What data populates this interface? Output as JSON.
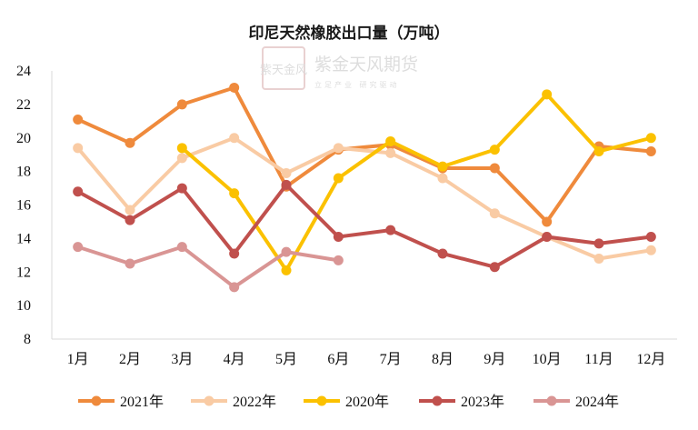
{
  "chart_data": {
    "type": "line",
    "title": "印尼天然橡胶出口量（万吨）",
    "categories": [
      "1月",
      "2月",
      "3月",
      "4月",
      "5月",
      "6月",
      "7月",
      "8月",
      "9月",
      "10月",
      "11月",
      "12月"
    ],
    "ylim": [
      8,
      24
    ],
    "yticks": [
      8,
      10,
      12,
      14,
      16,
      18,
      20,
      22,
      24
    ],
    "grid": false,
    "legend_position": "bottom",
    "series": [
      {
        "name": "2021年",
        "color": "#ef8a3c",
        "values": [
          21.1,
          19.7,
          22.0,
          23.0,
          17.1,
          19.3,
          19.6,
          18.2,
          18.2,
          15.0,
          19.5,
          19.2
        ]
      },
      {
        "name": "2022年",
        "color": "#f9cba4",
        "values": [
          19.4,
          15.7,
          18.8,
          20.0,
          17.9,
          19.4,
          19.1,
          17.6,
          15.5,
          14.1,
          12.8,
          13.3
        ]
      },
      {
        "name": "2020年",
        "color": "#fbc100",
        "values": [
          null,
          null,
          19.4,
          16.7,
          12.1,
          17.6,
          19.8,
          18.3,
          19.3,
          22.6,
          19.2,
          20.0
        ]
      },
      {
        "name": "2023年",
        "color": "#c0504d",
        "values": [
          16.8,
          15.1,
          17.0,
          13.1,
          17.2,
          14.1,
          14.5,
          13.1,
          12.3,
          14.1,
          13.7,
          14.1
        ]
      },
      {
        "name": "2024年",
        "color": "#d99594",
        "values": [
          13.5,
          12.5,
          13.5,
          11.1,
          13.2,
          12.7,
          null,
          null,
          null,
          null,
          null,
          null
        ]
      }
    ]
  },
  "watermark": {
    "brand": "紫金天风期货",
    "slogan": "立足产业 研究驱动",
    "seal": "紫天金风"
  }
}
